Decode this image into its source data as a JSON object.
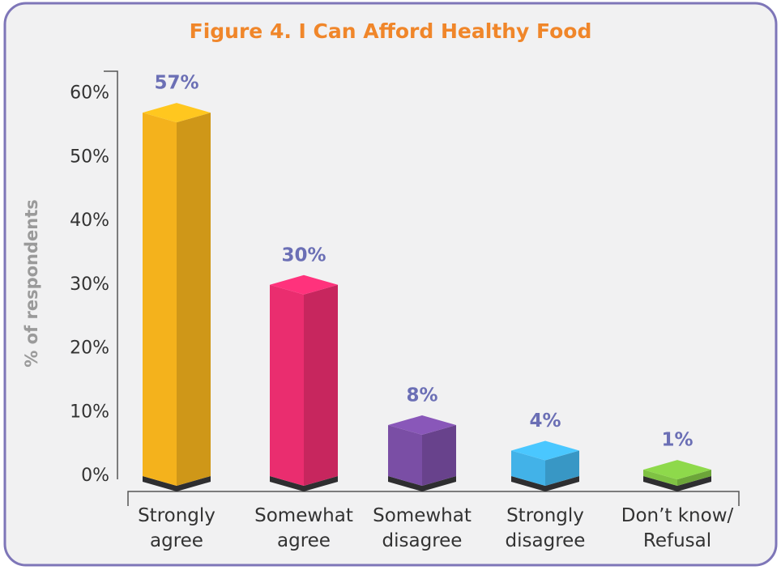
{
  "chart_data": {
    "type": "bar3d",
    "title": "Figure 4. I Can Afford Healthy Food",
    "y_label": "% of respondents",
    "categories": [
      "Strongly\nagree",
      "Somewhat\nagree",
      "Somewhat\ndisagree",
      "Strongly\ndisagree",
      "Don’t know/\nRefusal"
    ],
    "values": [
      57,
      30,
      8,
      4,
      1
    ],
    "value_labels": [
      "57%",
      "30%",
      "8%",
      "4%",
      "1%"
    ],
    "colors": [
      "#f4b21c",
      "#ea2d6f",
      "#7a4ea5",
      "#42b2e8",
      "#7fc243"
    ],
    "ylim": [
      0,
      63.5
    ],
    "yticks": [
      {
        "value": 0,
        "label": "0%"
      },
      {
        "value": 10,
        "label": "10%"
      },
      {
        "value": 20,
        "label": "20%"
      },
      {
        "value": 30,
        "label": "30%"
      },
      {
        "value": 40,
        "label": "40%"
      },
      {
        "value": 50,
        "label": "50%"
      },
      {
        "value": 60,
        "label": "60%"
      }
    ]
  }
}
